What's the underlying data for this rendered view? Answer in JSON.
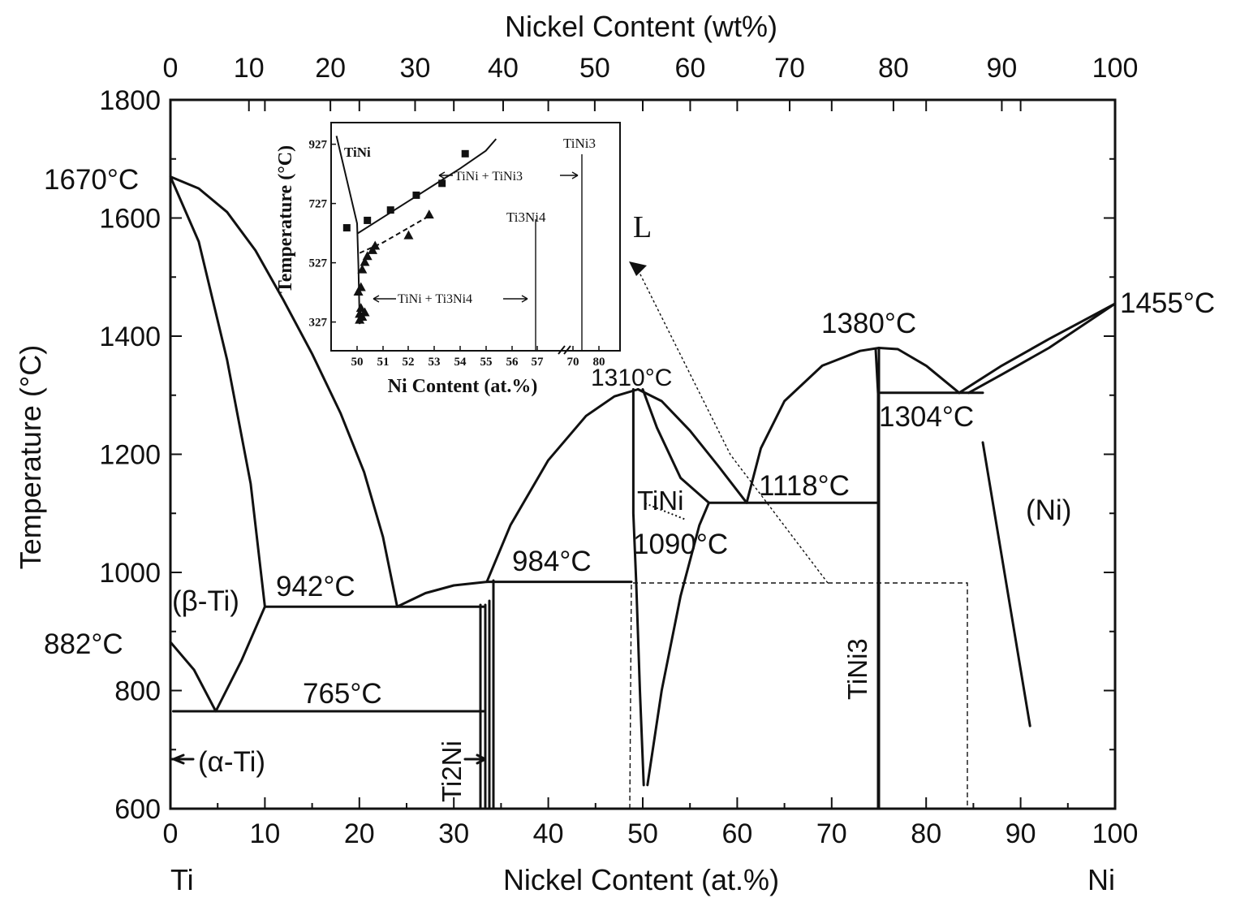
{
  "chart_data": {
    "type": "line",
    "title": "",
    "xlabel_bottom": "Nickel Content (at.%)",
    "xlabel_top": "Nickel Content (wt%)",
    "ylabel": "Temperature (°C)",
    "xlim": [
      0,
      100
    ],
    "ylim": [
      600,
      1800
    ],
    "x_ticks_bottom": [
      "0",
      "10",
      "20",
      "30",
      "40",
      "50",
      "60",
      "70",
      "80",
      "90",
      "100"
    ],
    "x_ticks_top": [
      "0",
      "10",
      "20",
      "30",
      "40",
      "50",
      "60",
      "70",
      "80",
      "90",
      "100"
    ],
    "y_ticks": [
      "600",
      "800",
      "1000",
      "1200",
      "1400",
      "1600",
      "1800"
    ],
    "end_labels": {
      "left": "Ti",
      "right": "Ni"
    },
    "temperature_labels": {
      "ti_melt": "1670°C",
      "ni_melt": "1455°C",
      "tini3_melt": "1380°C",
      "tini_melt": "1310°C",
      "eutectic_ni": "1304°C",
      "eutectic_1118": "1118°C",
      "eutectic_1090": "1090°C",
      "peritectic_984": "984°C",
      "eutectic_942": "942°C",
      "transformation_882": "882°C",
      "eutectoid_765": "765°C"
    },
    "phase_labels": {
      "liquid": "L",
      "beta_ti": "(β-Ti)",
      "alpha_ti": "(α-Ti)",
      "ti2ni": "Ti2Ni",
      "tini": "TiNi",
      "tini3": "TiNi3",
      "ni": "(Ni)"
    },
    "series": [
      {
        "name": "beta_liquidus",
        "points": [
          [
            0,
            1670
          ],
          [
            3,
            1650
          ],
          [
            6,
            1610
          ],
          [
            9,
            1545
          ],
          [
            12,
            1460
          ],
          [
            15,
            1370
          ],
          [
            18,
            1270
          ],
          [
            20.5,
            1170
          ],
          [
            22.5,
            1060
          ],
          [
            24,
            942
          ]
        ]
      },
      {
        "name": "beta_solidus",
        "points": [
          [
            0,
            1670
          ],
          [
            3,
            1560
          ],
          [
            6,
            1360
          ],
          [
            8.5,
            1150
          ],
          [
            10,
            942
          ]
        ]
      },
      {
        "name": "beta_transus_left",
        "points": [
          [
            0,
            882
          ],
          [
            2.5,
            835
          ],
          [
            4.8,
            765
          ]
        ]
      },
      {
        "name": "beta_transus_right",
        "points": [
          [
            4.8,
            765
          ],
          [
            7.5,
            850
          ],
          [
            10,
            942
          ]
        ]
      },
      {
        "name": "eutectic_942_line",
        "points": [
          [
            10,
            942
          ],
          [
            33.3,
            942
          ]
        ]
      },
      {
        "name": "eutectoid_765_line",
        "points": [
          [
            0.3,
            765
          ],
          [
            33.3,
            765
          ]
        ]
      },
      {
        "name": "ti2ni_liquidus",
        "points": [
          [
            24,
            942
          ],
          [
            27,
            965
          ],
          [
            30,
            978
          ],
          [
            33.5,
            984
          ]
        ]
      },
      {
        "name": "tini_liquidus_left",
        "points": [
          [
            33.5,
            984
          ],
          [
            36,
            1080
          ],
          [
            40,
            1190
          ],
          [
            44,
            1265
          ],
          [
            47,
            1298
          ],
          [
            49.5,
            1310
          ]
        ]
      },
      {
        "name": "tini_liquidus_right",
        "points": [
          [
            49.5,
            1310
          ],
          [
            52,
            1290
          ],
          [
            55,
            1240
          ],
          [
            58,
            1180
          ],
          [
            61,
            1118
          ]
        ]
      },
      {
        "name": "tini_solidus_right",
        "points": [
          [
            50,
            1310
          ],
          [
            51.5,
            1245
          ],
          [
            54,
            1160
          ],
          [
            57,
            1118
          ]
        ]
      },
      {
        "name": "tini_left_boundary",
        "points": [
          [
            49,
            1310
          ],
          [
            49,
            1100
          ],
          [
            49.3,
            984
          ],
          [
            49.7,
            800
          ],
          [
            50.1,
            640
          ]
        ]
      },
      {
        "name": "tini_right_boundary",
        "points": [
          [
            50.5,
            640
          ],
          [
            52,
            800
          ],
          [
            54,
            960
          ],
          [
            56,
            1080
          ],
          [
            57,
            1118
          ]
        ]
      },
      {
        "name": "peritectic_984_line",
        "points": [
          [
            33.5,
            984
          ],
          [
            48.8,
            984
          ]
        ]
      },
      {
        "name": "eutectic_1118_line",
        "points": [
          [
            57,
            1118
          ],
          [
            75,
            1118
          ]
        ]
      },
      {
        "name": "tini3_liquidus_left",
        "points": [
          [
            61,
            1118
          ],
          [
            62.5,
            1210
          ],
          [
            65,
            1290
          ],
          [
            69,
            1350
          ],
          [
            73,
            1375
          ],
          [
            75,
            1380
          ]
        ]
      },
      {
        "name": "tini3_liquidus_right",
        "points": [
          [
            75,
            1380
          ],
          [
            77,
            1378
          ],
          [
            80,
            1350
          ],
          [
            83.5,
            1304
          ]
        ]
      },
      {
        "name": "tini3_line",
        "points": [
          [
            75,
            1380
          ],
          [
            75,
            600
          ]
        ]
      },
      {
        "name": "eutectic_1304_line",
        "points": [
          [
            75.2,
            1304
          ],
          [
            86,
            1304
          ]
        ]
      },
      {
        "name": "ni_liquidus",
        "points": [
          [
            83.5,
            1304
          ],
          [
            88,
            1350
          ],
          [
            93,
            1395
          ],
          [
            100,
            1455
          ]
        ]
      },
      {
        "name": "ni_solidus",
        "points": [
          [
            84.5,
            1304
          ],
          [
            88,
            1335
          ],
          [
            93,
            1380
          ],
          [
            100,
            1455
          ]
        ]
      },
      {
        "name": "ni_solvus",
        "points": [
          [
            86,
            1220
          ],
          [
            91,
            740
          ]
        ]
      }
    ],
    "inset": {
      "xlabel": "Ni Content (at.%)",
      "ylabel": "Temperature (°C)",
      "x_ticks": [
        "50",
        "51",
        "52",
        "53",
        "54",
        "55",
        "56",
        "57",
        "70",
        "80"
      ],
      "y_ticks": [
        "327",
        "527",
        "727",
        "927"
      ],
      "labels": {
        "tini": "TiNi",
        "tini3": "TiNi3",
        "ti3ni4": "Ti3Ni4",
        "region_tini_tini3": "TiNi + TiNi3",
        "region_tini_ti3ni4": "TiNi + Ti3Ni4"
      },
      "series": [
        {
          "name": "squares",
          "points": [
            [
              49.6,
              645
            ],
            [
              50.4,
              670
            ],
            [
              51.3,
              705
            ],
            [
              52.3,
              755
            ],
            [
              53.3,
              795
            ],
            [
              54.2,
              895
            ]
          ]
        },
        {
          "name": "triangles",
          "points": [
            [
              50.1,
              335
            ],
            [
              50.1,
              355
            ],
            [
              50.15,
              375
            ],
            [
              50.2,
              345
            ],
            [
              50.3,
              360
            ],
            [
              50.05,
              430
            ],
            [
              50.15,
              445
            ],
            [
              50.2,
              505
            ],
            [
              50.3,
              530
            ],
            [
              50.4,
              550
            ],
            [
              50.6,
              570
            ],
            [
              50.7,
              585
            ],
            [
              52.0,
              620
            ],
            [
              52.8,
              690
            ]
          ]
        },
        {
          "name": "solvus_solid",
          "points": [
            [
              50,
              625
            ],
            [
              51,
              680
            ],
            [
              52,
              735
            ],
            [
              53,
              790
            ],
            [
              54,
              845
            ],
            [
              55,
              905
            ],
            [
              55.4,
              945
            ]
          ]
        },
        {
          "name": "solvus_dashed",
          "points": [
            [
              50.1,
              560
            ],
            [
              51,
              595
            ],
            [
              52,
              645
            ],
            [
              52.9,
              690
            ]
          ]
        },
        {
          "name": "left_boundary",
          "points": [
            [
              49.2,
              955
            ],
            [
              50,
              660
            ],
            [
              50.05,
              520
            ],
            [
              50.1,
              320
            ]
          ]
        }
      ]
    }
  }
}
